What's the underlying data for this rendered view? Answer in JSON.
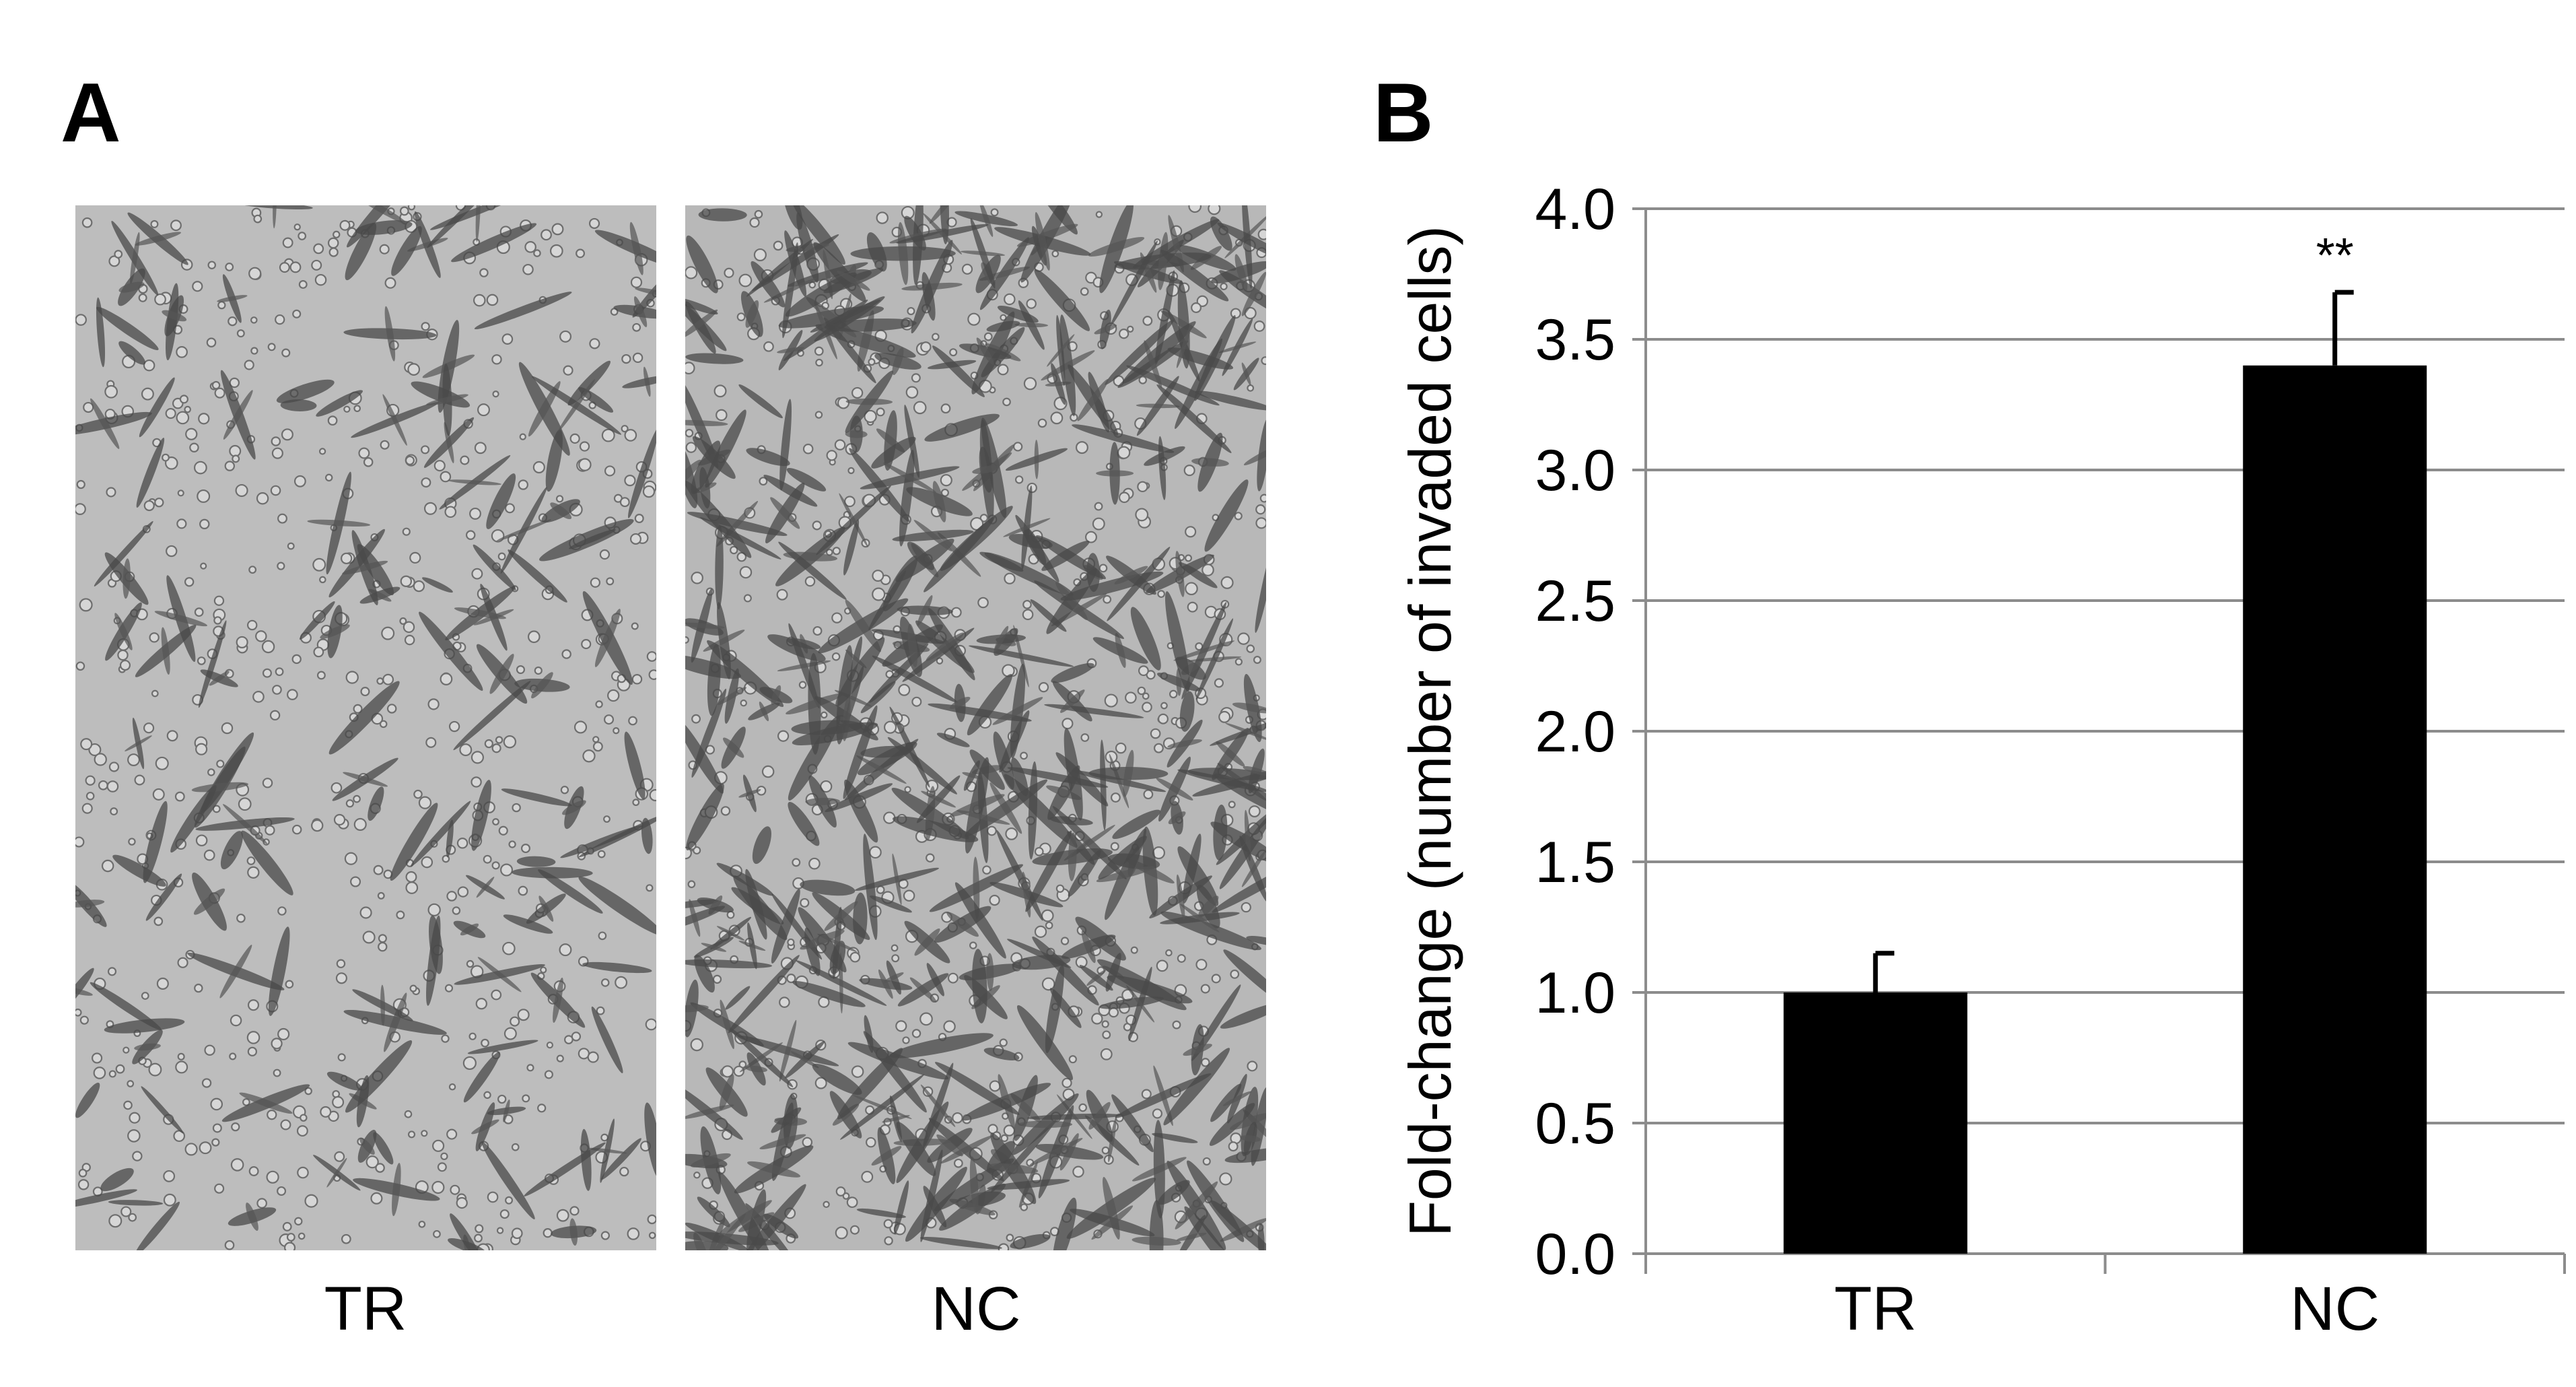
{
  "panel_a": {
    "letter": "A",
    "images": [
      {
        "label": "TR",
        "density": 0.35,
        "background": "#bdbdbd"
      },
      {
        "label": "NC",
        "density": 1.0,
        "background": "#b8b8b8"
      }
    ]
  },
  "panel_b": {
    "letter": "B"
  },
  "chart_data": {
    "type": "bar",
    "categories": [
      "TR",
      "NC"
    ],
    "values": [
      1.0,
      3.4
    ],
    "error": [
      0.15,
      0.28
    ],
    "annotations": [
      "",
      "**"
    ],
    "title": "",
    "xlabel": "",
    "ylabel": "Fold-change (number of invaded cells)",
    "ylim": [
      0,
      4.0
    ],
    "yticks": [
      "0.0",
      "0.5",
      "1.0",
      "1.5",
      "2.0",
      "2.5",
      "3.0",
      "3.5",
      "4.0"
    ],
    "grid": true,
    "bar_color": "#000000",
    "grid_color": "#8c8c8c"
  }
}
